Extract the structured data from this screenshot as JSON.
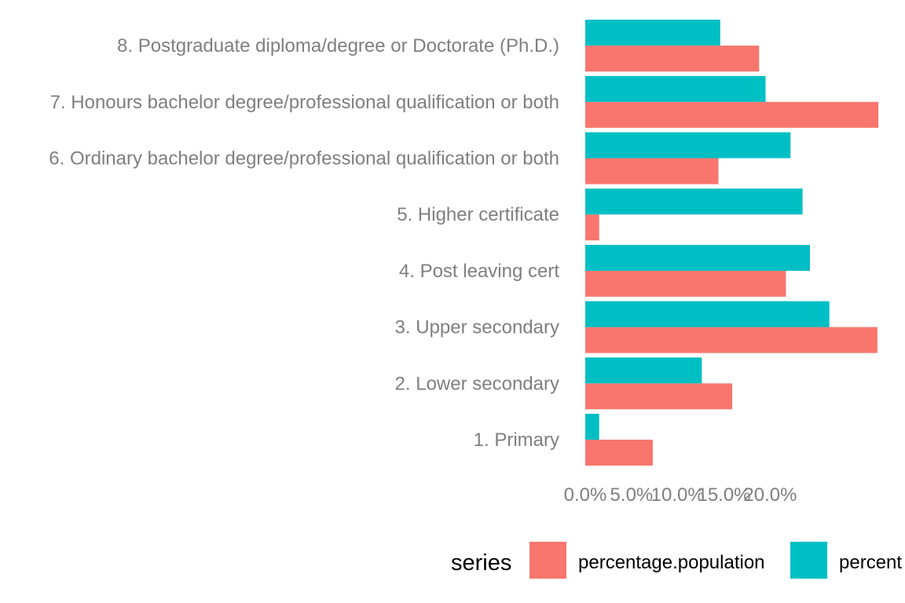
{
  "chart_data": {
    "type": "bar",
    "orientation": "horizontal",
    "categories": [
      "1. Primary",
      "2. Lower secondary",
      "3. Upper secondary",
      "4. Post leaving cert",
      "5. Higher certificate",
      "6. Ordinary bachelor degree/professional qualification or both",
      "7. Honours bachelor degree/professional qualification or both",
      "8. Postgraduate diploma/degree or Doctorate (Ph.D.)"
    ],
    "series": [
      {
        "name": "percentage.population",
        "color": "#F8766D",
        "values": [
          7.3,
          15.9,
          31.6,
          21.7,
          1.5,
          14.4,
          31.7,
          18.8
        ]
      },
      {
        "name": "percent",
        "color": "#00BFC4",
        "values": [
          1.5,
          12.6,
          26.4,
          24.3,
          23.5,
          22.2,
          19.5,
          14.6
        ]
      }
    ],
    "x_ticks": [
      "0.0%",
      "5.0%",
      "10.0%",
      "15.0%",
      "20.0%"
    ],
    "x_tick_values": [
      0,
      5,
      10,
      15,
      20
    ],
    "xlim": [
      0,
      31.7
    ],
    "legend": {
      "title": "series",
      "position": "bottom"
    },
    "grid": false,
    "title": "",
    "xlabel": "",
    "ylabel": ""
  }
}
